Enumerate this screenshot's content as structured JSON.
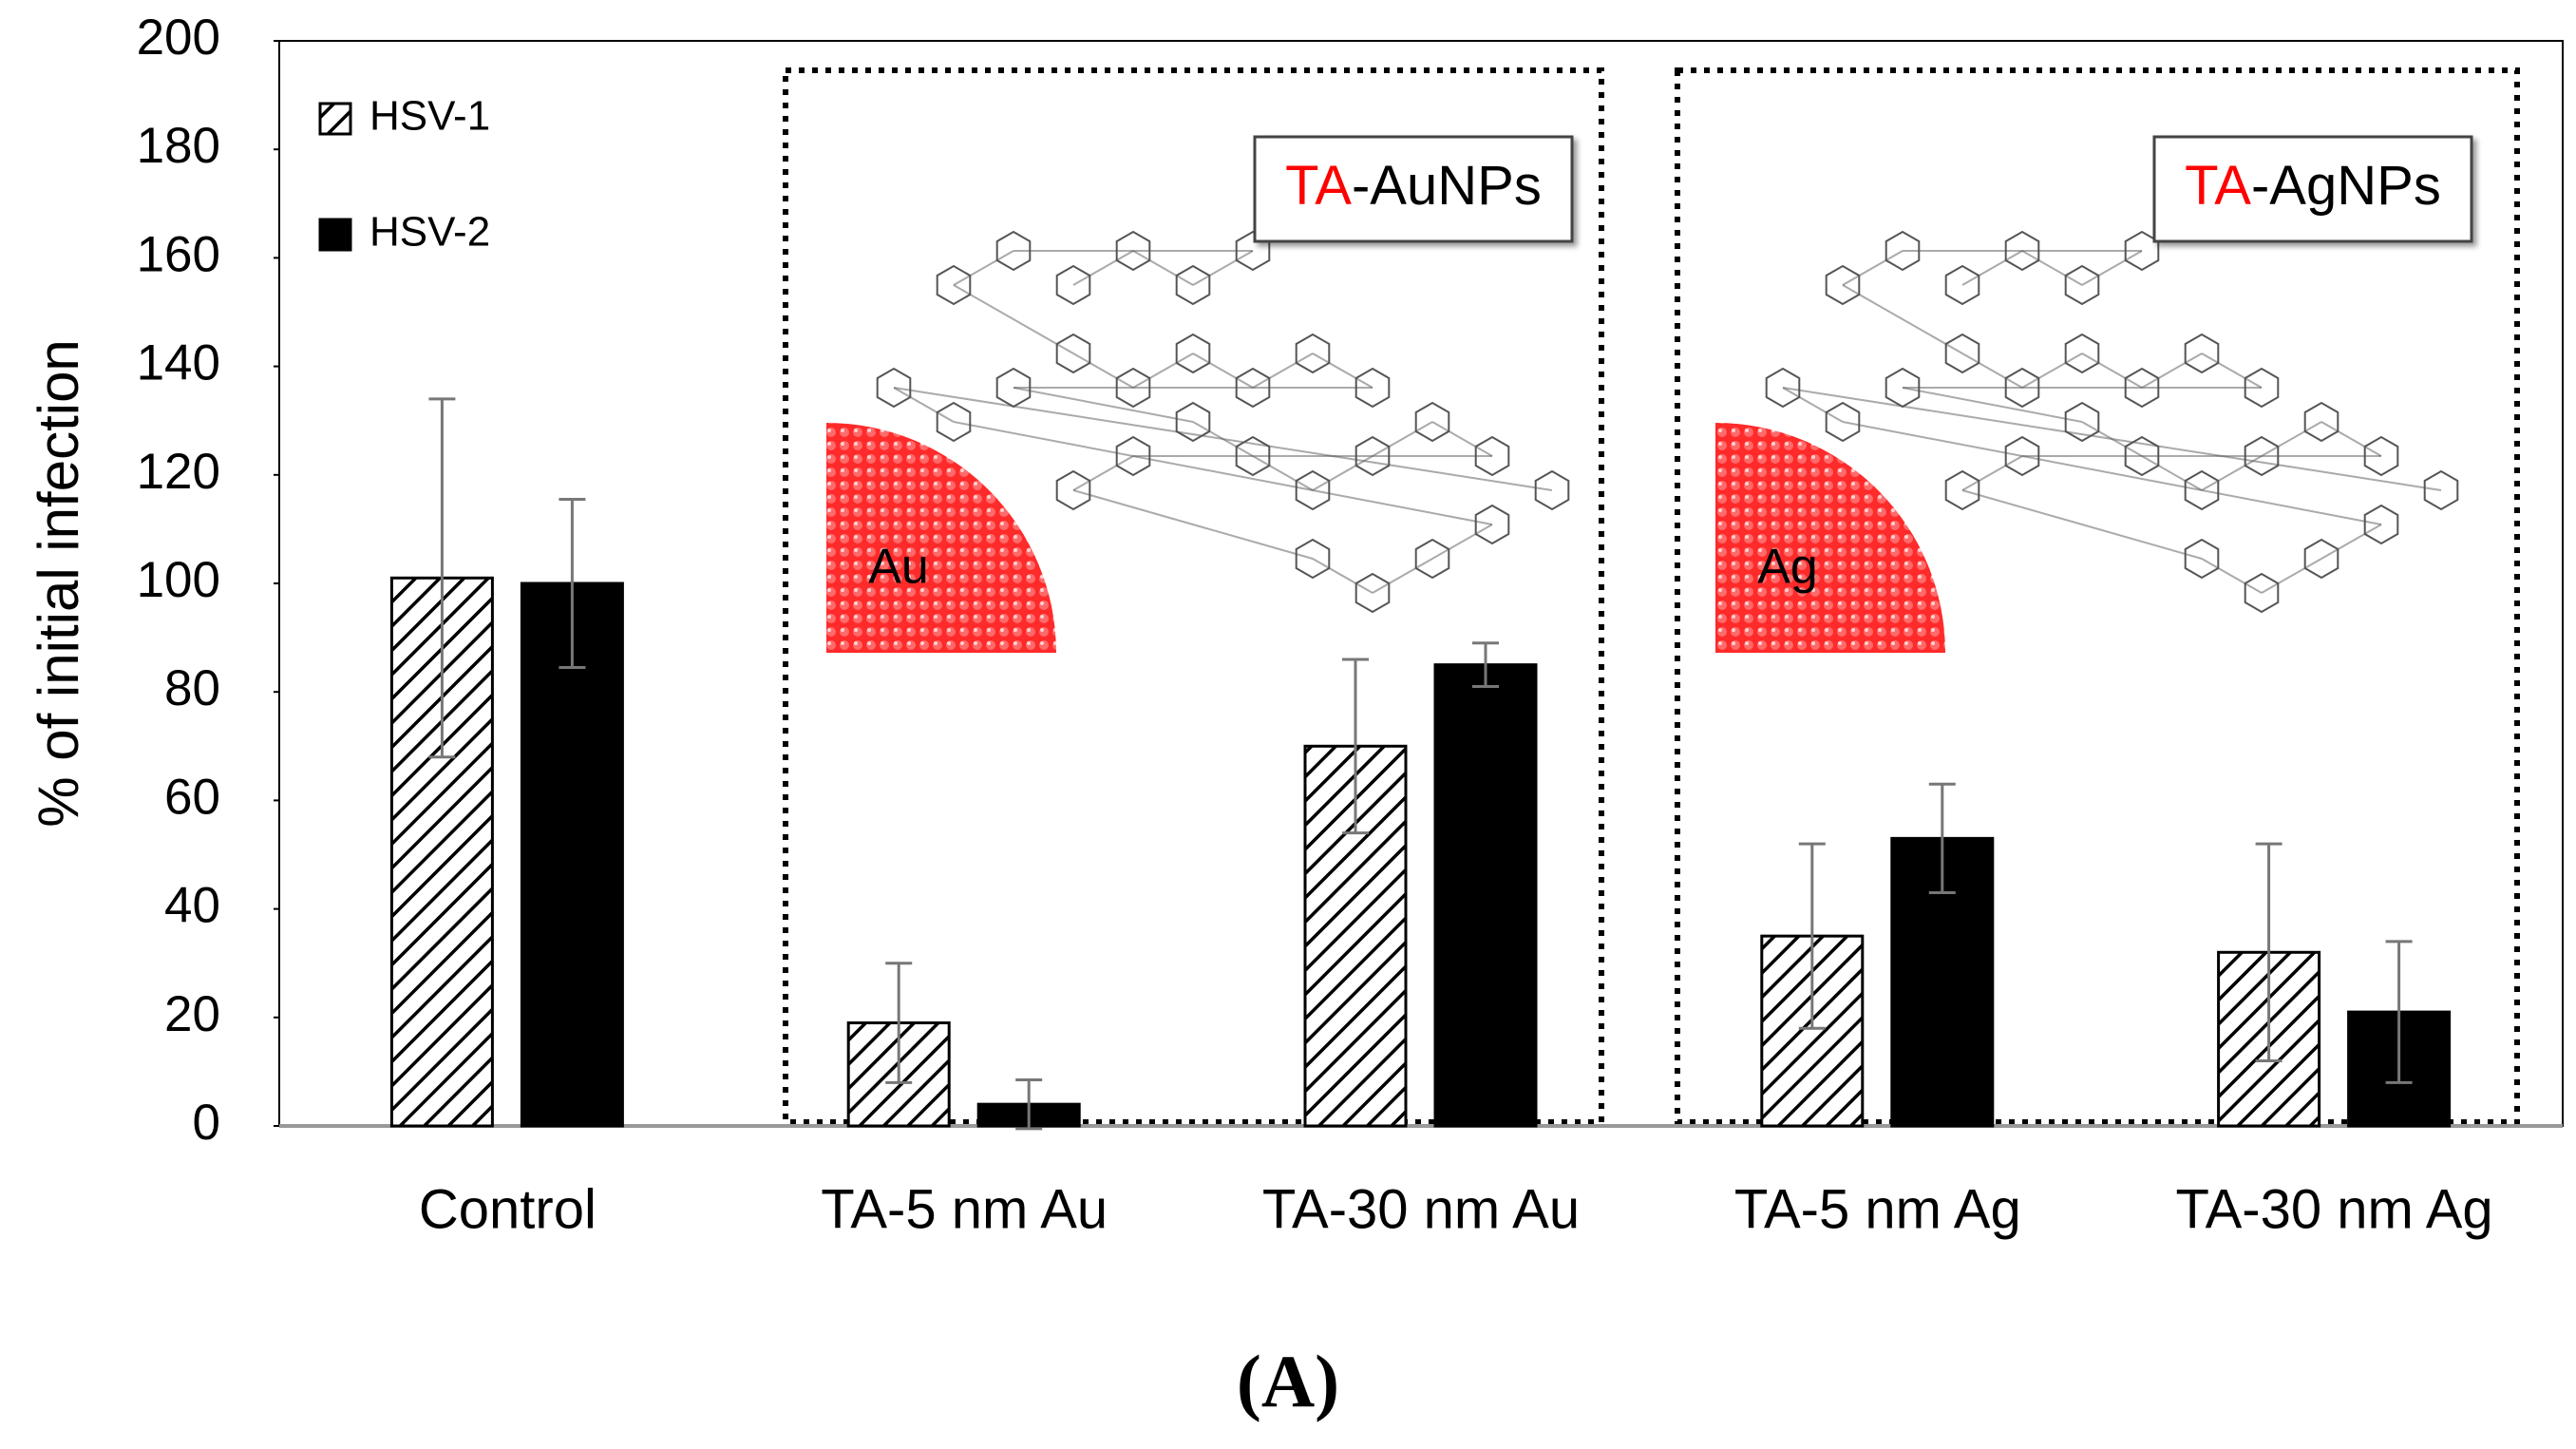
{
  "chart_data": {
    "type": "bar",
    "ylabel": "% of initial  infection",
    "categories": [
      "Control",
      "TA-5 nm Au",
      "TA-30 nm Au",
      "TA-5 nm Ag",
      "TA-30 nm Ag"
    ],
    "series": [
      {
        "name": "HSV-1",
        "color": "#000000",
        "pattern": "hatch",
        "values": [
          101,
          19,
          70,
          35,
          32
        ],
        "errors": [
          33,
          11,
          16,
          17,
          20
        ]
      },
      {
        "name": "HSV-2",
        "color": "#000000",
        "pattern": "solid",
        "values": [
          100,
          4,
          85,
          53,
          21
        ],
        "errors": [
          15.5,
          4.5,
          4,
          10,
          13
        ]
      }
    ],
    "ylim": [
      0,
      200
    ],
    "yticks": [
      0,
      20,
      40,
      60,
      80,
      100,
      120,
      140,
      160,
      180,
      200
    ],
    "legend": "top-left",
    "annotations": [
      {
        "prefix": "TA",
        "suffix": "-AuNPs",
        "core": "Au"
      },
      {
        "prefix": "TA",
        "suffix": "-AgNPs",
        "core": "Ag"
      }
    ],
    "caption": "(A)"
  }
}
